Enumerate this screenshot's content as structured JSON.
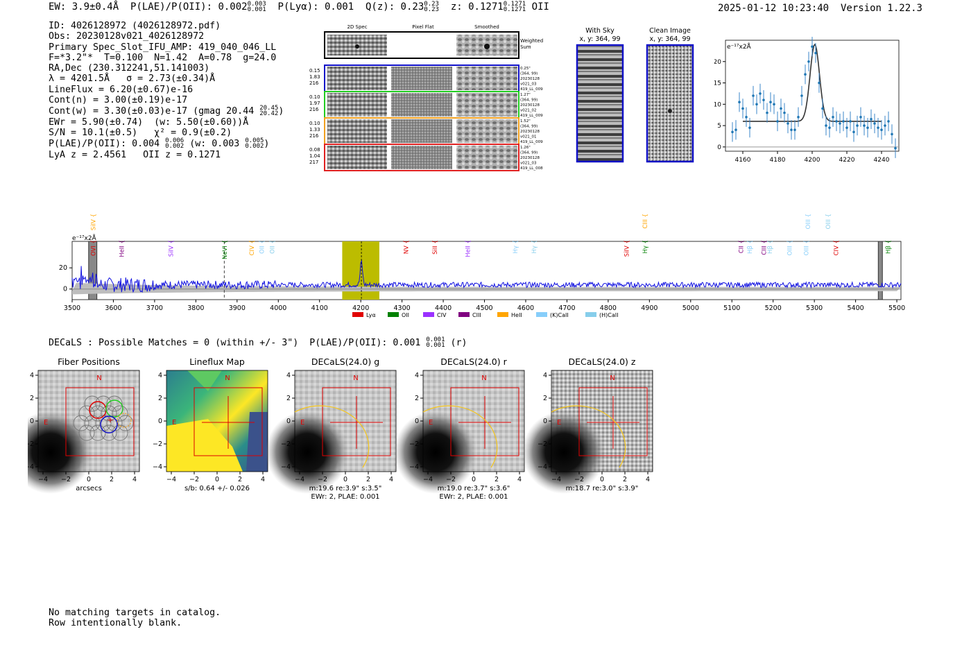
{
  "header": {
    "ew": "EW: 3.9±0.4Å",
    "plae_label": "P(LAE)/P(OII): 0.002",
    "plae_hi": "0.003",
    "plae_lo": "0.001",
    "plya": "P(Lyα): 0.001",
    "qz_label": "Q(z): 0.23",
    "qz_hi": "0.23",
    "qz_lo": "0.23",
    "z_label": "z: 0.1271",
    "z_hi": "0.1271",
    "z_lo": "0.1271",
    "z_line": "OII",
    "datetime": "2025-01-12 10:23:40",
    "version": "Version 1.22.3"
  },
  "info": {
    "id": "ID: 4026128972 (4026128972.pdf)",
    "obs": "Obs: 20230128v021_4026128972",
    "primary": "Primary Spec_Slot_IFU_AMP: 419_040_046_LL",
    "fparams": "F=*3.2\"*  T=0.100  N=1.42  A=0.78  g=24.0",
    "radec": "RA,Dec (230.312241,51.141003)",
    "lambda_sigma": "λ = 4201.5Å   σ = 2.73(±0.34)Å",
    "lineflux": "LineFlux = 6.20(±0.67)e-16",
    "cont_n": "Cont(n) = 3.00(±0.19)e-17",
    "cont_w": "Cont(w) = 3.30(±0.03)e-17 (gmag 20.44",
    "gmag_hi": "20.45",
    "gmag_lo": "20.42",
    "gmag_close": ")",
    "ewr": "EWr = 5.90(±0.74)  (w: 5.50(±0.60))Å",
    "sn": "S/N = 10.1(±0.5)   χ² = 0.9(±0.2)",
    "plae": "P(LAE)/P(OII): 0.004",
    "plae_hi": "0.006",
    "plae_lo": "0.002",
    "plae_w": "(w: 0.003",
    "plae_w_hi": "0.005",
    "plae_w_lo": "0.002",
    "plae_close": ")",
    "lya_z": "LyA z = 2.4561   OII z = 0.1271"
  },
  "cutouts": {
    "col_2d": "2D Spec",
    "col_flat": "Pixel Flat",
    "col_smooth": "Smoothed",
    "weighted": [
      "Weighted",
      "Sum"
    ],
    "rows": [
      {
        "color": "#1010c8",
        "left": [
          "0.15",
          "1.83",
          "216"
        ],
        "right": [
          "0.25\"",
          "(364, 99)",
          "20230128",
          "v021_03",
          "419_LL_009"
        ]
      },
      {
        "color": "#22cc22",
        "left": [
          "0.10",
          "1.97",
          "216"
        ],
        "right": [
          "1.27\"",
          "(364, 99)",
          "20230128",
          "v021_02",
          "419_LL_009"
        ]
      },
      {
        "color": "#f0a020",
        "left": [
          "0.10",
          "1.33",
          "216"
        ],
        "right": [
          "1.52\"",
          "(364, 99)",
          "20230128",
          "v021_01",
          "419_LL_009"
        ]
      },
      {
        "color": "#e02020",
        "left": [
          "0.08",
          "1.04",
          "217"
        ],
        "right": [
          "1.26\"",
          "(364, 99)",
          "20230128",
          "v021_03",
          "419_LL_008"
        ]
      }
    ]
  },
  "sky": {
    "with_sky_title": "With Sky",
    "with_sky_sub": "x, y: 364, 99",
    "clean_title": "Clean Image",
    "clean_sub": "x, y: 364, 99"
  },
  "zoom_chart": {
    "unit": "e⁻¹⁷x2Å",
    "xticks": [
      "4160",
      "4180",
      "4200",
      "4220",
      "4240"
    ],
    "yticks": [
      "0",
      "5",
      "10",
      "15",
      "20"
    ]
  },
  "spectrum": {
    "unit": "e⁻¹⁷x2Å",
    "yticks": [
      "0",
      "20"
    ],
    "xticks": [
      "3500",
      "3600",
      "3700",
      "3800",
      "3900",
      "4000",
      "4100",
      "4200",
      "4300",
      "4400",
      "4500",
      "4600",
      "4700",
      "4800",
      "4900",
      "5000",
      "5100",
      "5200",
      "5300",
      "5400",
      "5500"
    ],
    "legend": [
      {
        "label": "Lyα",
        "color": "#e00000"
      },
      {
        "label": "OII",
        "color": "#008000"
      },
      {
        "label": "CIV",
        "color": "#9b30ff"
      },
      {
        "label": "CIII",
        "color": "#800080"
      },
      {
        "label": "HeII",
        "color": "#ffa500"
      },
      {
        "label": "(K)CaII",
        "color": "#87cefa"
      },
      {
        "label": "(H)CaII",
        "color": "#87ceeb"
      }
    ],
    "lines": [
      {
        "label": "SiIV",
        "w": 3551,
        "row": 0,
        "color": "#ffa500"
      },
      {
        "label": "OVI",
        "w": 3551,
        "row": 1,
        "color": "#e00000"
      },
      {
        "label": "HeII",
        "w": 3620,
        "row": 1,
        "color": "#800080"
      },
      {
        "label": "SiIV",
        "w": 3740,
        "row": 1,
        "color": "#9b30ff"
      },
      {
        "label": "NeVI",
        "w": 3870,
        "row": 1,
        "color": "#008000"
      },
      {
        "label": "CIV",
        "w": 3936,
        "row": 1,
        "color": "#ffa500"
      },
      {
        "label": "OII",
        "w": 3960,
        "row": 1,
        "color": "#87cefa"
      },
      {
        "label": "OII",
        "w": 3985,
        "row": 1,
        "color": "#87ceeb"
      },
      {
        "label": "NV",
        "w": 4310,
        "row": 1,
        "color": "#e00000"
      },
      {
        "label": "SiII",
        "w": 4380,
        "row": 1,
        "color": "#e00000"
      },
      {
        "label": "HeII",
        "w": 4460,
        "row": 1,
        "color": "#9b30ff"
      },
      {
        "label": "Hγ",
        "w": 4575,
        "row": 1,
        "color": "#87cefa"
      },
      {
        "label": "Hγ",
        "w": 4620,
        "row": 1,
        "color": "#87ceeb"
      },
      {
        "label": "SiIV",
        "w": 4845,
        "row": 1,
        "color": "#e00000"
      },
      {
        "label": "CIII",
        "w": 4889,
        "row": 0,
        "color": "#ffa500"
      },
      {
        "label": "Hγ",
        "w": 4889,
        "row": 1,
        "color": "#008000"
      },
      {
        "label": "CII",
        "w": 5122,
        "row": 1,
        "color": "#800080"
      },
      {
        "label": "Hβ",
        "w": 5143,
        "row": 1,
        "color": "#87cefa"
      },
      {
        "label": "CIII",
        "w": 5178,
        "row": 1,
        "color": "#800080"
      },
      {
        "label": "Hβ",
        "w": 5192,
        "row": 1,
        "color": "#87ceeb"
      },
      {
        "label": "OIII",
        "w": 5240,
        "row": 1,
        "color": "#87cefa"
      },
      {
        "label": "OIII",
        "w": 5280,
        "row": 1,
        "color": "#87cefa"
      },
      {
        "label": "OIII",
        "w": 5285,
        "row": 0,
        "color": "#87cefa"
      },
      {
        "label": "OIII",
        "w": 5333,
        "row": 0,
        "color": "#87ceeb"
      },
      {
        "label": "CIV",
        "w": 5353,
        "row": 1,
        "color": "#e00000"
      },
      {
        "label": "Hβ",
        "w": 5479,
        "row": 1,
        "color": "#008000"
      }
    ]
  },
  "decals_line": {
    "text": "DECaLS : Possible Matches = 0 (within +/- 3\")  P(LAE)/P(OII): 0.001",
    "hi": "0.001",
    "lo": "0.001",
    "band": "(r)"
  },
  "panels": [
    {
      "title": "Fiber Positions",
      "caption": [
        "arcsecs"
      ]
    },
    {
      "title": "Lineflux Map",
      "caption": [
        "s/b: 0.64 +/- 0.026"
      ]
    },
    {
      "title": "DECaLS(24.0) g",
      "caption": [
        "m:19.6  re:3.9\"  s:3.5\"",
        "EWr: 2, PLAE: 0.001"
      ]
    },
    {
      "title": "DECaLS(24.0) r",
      "caption": [
        "m:19.0  re:3.7\"  s:3.6\"",
        "EWr: 2, PLAE: 0.001"
      ]
    },
    {
      "title": "DECaLS(24.0) z",
      "caption": [
        "m:18.7  re:3.0\"  s:3.9\""
      ]
    }
  ],
  "panel_axis": {
    "xticks": [
      "−4",
      "−2",
      "0",
      "2",
      "4"
    ],
    "yticks": [
      "4",
      "2",
      "0",
      "−2",
      "−4"
    ],
    "north": "N",
    "east": "E"
  },
  "footer": {
    "line1": "No matching targets in catalog.",
    "line2": "Row intentionally blank."
  },
  "chart_data": [
    {
      "type": "line",
      "title": "",
      "xlabel": "",
      "ylabel": "e⁻¹⁷x2Å",
      "xlim": [
        3500,
        5510
      ],
      "ylim": [
        -10,
        45
      ],
      "highlight_range": [
        4155,
        4245
      ],
      "marker_x": 4201.5,
      "masked_ranges": [
        [
          3540,
          3560
        ],
        [
          5455,
          5465
        ]
      ],
      "peak": {
        "x": 4201.5,
        "y": 26
      },
      "continuum_level": 4
    },
    {
      "type": "scatter",
      "title": "",
      "ylabel": "e⁻¹⁷x2Å",
      "xlim": [
        4150,
        4250
      ],
      "ylim": [
        -1,
        25
      ],
      "x": [
        4154,
        4156,
        4158,
        4160,
        4162,
        4164,
        4166,
        4168,
        4170,
        4172,
        4174,
        4176,
        4178,
        4180,
        4182,
        4184,
        4186,
        4188,
        4190,
        4192,
        4194,
        4196,
        4198,
        4200,
        4202,
        4204,
        4206,
        4208,
        4210,
        4212,
        4214,
        4216,
        4218,
        4220,
        4222,
        4224,
        4226,
        4228,
        4230,
        4232,
        4234,
        4236,
        4238,
        4240,
        4242,
        4244,
        4246,
        4248
      ],
      "y": [
        3.5,
        4,
        10.5,
        9,
        7,
        4.5,
        12,
        10,
        12.5,
        11,
        8,
        10.5,
        10,
        6,
        9,
        8,
        5.5,
        4,
        4,
        7,
        12,
        17,
        20,
        23.5,
        22,
        15,
        9,
        5,
        4.5,
        7,
        6,
        5.5,
        6,
        4.5,
        6,
        3.5,
        5,
        7,
        5,
        4.5,
        6.5,
        5.5,
        4.5,
        4,
        5,
        6,
        3,
        -0.3
      ],
      "fit_baseline": 6,
      "fit_peak": 24,
      "fit_center": 4201.5,
      "fit_sigma": 2.73
    }
  ]
}
